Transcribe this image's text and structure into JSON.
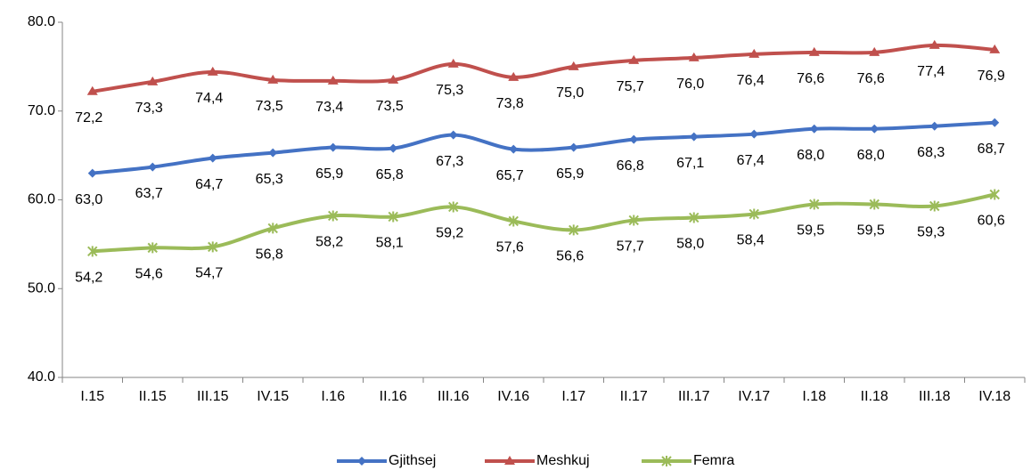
{
  "chart_data": {
    "type": "line",
    "categories": [
      "I.15",
      "II.15",
      "III.15",
      "IV.15",
      "I.16",
      "II.16",
      "III.16",
      "IV.16",
      "I.17",
      "II.17",
      "III.17",
      "IV.17",
      "I.18",
      "II.18",
      "III.18",
      "IV.18"
    ],
    "series": [
      {
        "name": "Gjithsej",
        "color": "#4472c4",
        "marker": "diamond",
        "values": [
          63.0,
          63.7,
          64.7,
          65.3,
          65.9,
          65.8,
          67.3,
          65.7,
          65.9,
          66.8,
          67.1,
          67.4,
          68.0,
          68.0,
          68.3,
          68.7
        ],
        "value_labels": [
          "63,0",
          "63,7",
          "64,7",
          "65,3",
          "65,9",
          "65,8",
          "67,3",
          "65,7",
          "65,9",
          "66,8",
          "67,1",
          "67,4",
          "68,0",
          "68,0",
          "68,3",
          "68,7"
        ]
      },
      {
        "name": "Meshkuj",
        "color": "#c0504d",
        "marker": "triangle",
        "values": [
          72.2,
          73.3,
          74.4,
          73.5,
          73.4,
          73.5,
          75.3,
          73.8,
          75.0,
          75.7,
          76.0,
          76.4,
          76.6,
          76.6,
          77.4,
          76.9
        ],
        "value_labels": [
          "72,2",
          "73,3",
          "74,4",
          "73,5",
          "73,4",
          "73,5",
          "75,3",
          "73,8",
          "75,0",
          "75,7",
          "76,0",
          "76,4",
          "76,6",
          "76,6",
          "77,4",
          "76,9"
        ]
      },
      {
        "name": "Femra",
        "color": "#9bbb59",
        "marker": "star",
        "values": [
          54.2,
          54.6,
          54.7,
          56.8,
          58.2,
          58.1,
          59.2,
          57.6,
          56.6,
          57.7,
          58.0,
          58.4,
          59.5,
          59.5,
          59.3,
          60.6
        ],
        "value_labels": [
          "54,2",
          "54,6",
          "54,7",
          "56,8",
          "58,2",
          "58,1",
          "59,2",
          "57,6",
          "56,6",
          "57,7",
          "58,0",
          "58,4",
          "59,5",
          "59,5",
          "59,3",
          "60,6"
        ]
      }
    ],
    "ylim": [
      40,
      80
    ],
    "yticks": [
      {
        "value": 40,
        "label": "40.0"
      },
      {
        "value": 50,
        "label": "50.0"
      },
      {
        "value": 60,
        "label": "60.0"
      },
      {
        "value": 70,
        "label": "70.0"
      },
      {
        "value": 80,
        "label": "80.0"
      }
    ],
    "grid": false,
    "legend": "bottom"
  }
}
